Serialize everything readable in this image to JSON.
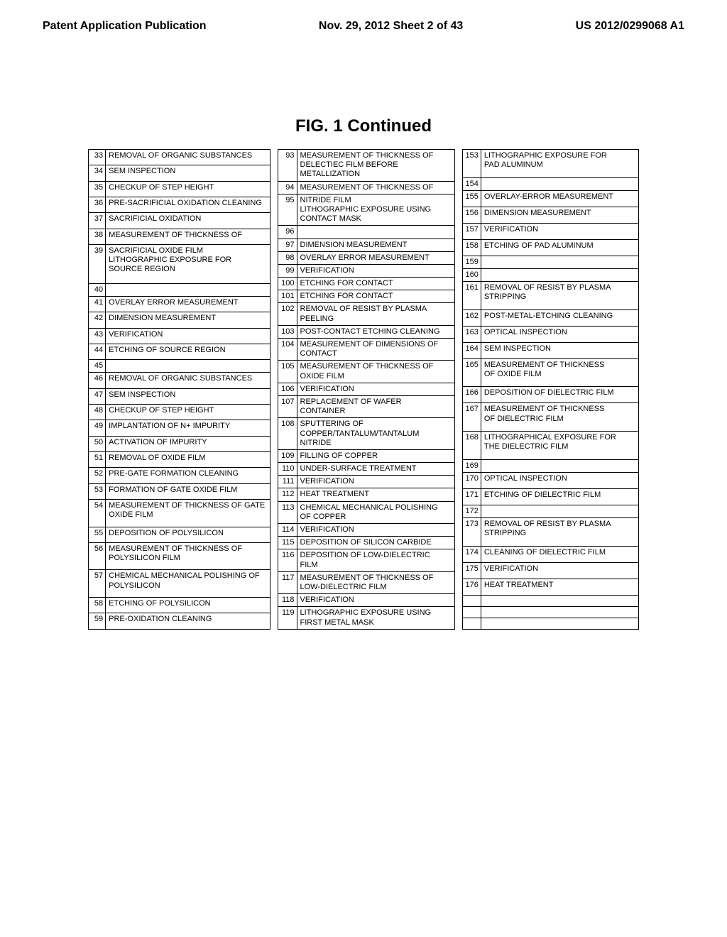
{
  "header": {
    "left": "Patent Application Publication",
    "center": "Nov. 29, 2012  Sheet 2 of 43",
    "right": "US 2012/0299068 A1"
  },
  "figure_title": "FIG. 1 Continued",
  "col1": [
    {
      "n": 33,
      "t": "REMOVAL OF ORGANIC SUBSTANCES"
    },
    {
      "n": 34,
      "t": "SEM INSPECTION"
    },
    {
      "n": 35,
      "t": "CHECKUP OF STEP HEIGHT"
    },
    {
      "n": 36,
      "t": "PRE-SACRIFICIAL OXIDATION CLEANING"
    },
    {
      "n": 37,
      "t": "SACRIFICIAL OXIDATION"
    },
    {
      "n": 38,
      "t": "MEASUREMENT OF THICKNESS OF"
    },
    {
      "n": 39,
      "t": "SACRIFICIAL OXIDE FILM\nLITHOGRAPHIC EXPOSURE FOR\nSOURCE REGION"
    },
    {
      "n": 40,
      "t": ""
    },
    {
      "n": 41,
      "t": "OVERLAY ERROR MEASUREMENT"
    },
    {
      "n": 42,
      "t": "DIMENSION MEASUREMENT"
    },
    {
      "n": 43,
      "t": "VERIFICATION"
    },
    {
      "n": 44,
      "t": "ETCHING OF SOURCE REGION"
    },
    {
      "n": 45,
      "t": ""
    },
    {
      "n": 46,
      "t": "REMOVAL OF ORGANIC SUBSTANCES"
    },
    {
      "n": 47,
      "t": "SEM INSPECTION"
    },
    {
      "n": 48,
      "t": "CHECKUP OF STEP HEIGHT"
    },
    {
      "n": 49,
      "t": "IMPLANTATION OF N+ IMPURITY"
    },
    {
      "n": 50,
      "t": "ACTIVATION OF IMPURITY"
    },
    {
      "n": 51,
      "t": "REMOVAL OF OXIDE FILM"
    },
    {
      "n": 52,
      "t": "PRE-GATE FORMATION CLEANING"
    },
    {
      "n": 53,
      "t": "FORMATION OF GATE OXIDE FILM"
    },
    {
      "n": 54,
      "t": "MEASUREMENT OF THICKNESS OF GATE\nOXIDE FILM"
    },
    {
      "n": 55,
      "t": "DEPOSITION OF POLYSILICON"
    },
    {
      "n": 56,
      "t": "MEASUREMENT OF THICKNESS OF\nPOLYSILICON FILM"
    },
    {
      "n": 57,
      "t": "CHEMICAL MECHANICAL POLISHING OF\nPOLYSILICON"
    },
    {
      "n": 58,
      "t": "ETCHING OF POLYSILICON"
    },
    {
      "n": 59,
      "t": "PRE-OXIDATION CLEANING"
    }
  ],
  "col2": [
    {
      "n": 93,
      "t": "MEASUREMENT OF THICKNESS OF\nDELECTIEC FILM BEFORE\nMETALLIZATION"
    },
    {
      "n": 94,
      "t": "MEASUREMENT OF THICKNESS OF"
    },
    {
      "n": 95,
      "t": "NITRIDE FILM\nLITHOGRAPHIC EXPOSURE USING\nCONTACT MASK"
    },
    {
      "n": 96,
      "t": ""
    },
    {
      "n": 97,
      "t": "DIMENSION MEASUREMENT"
    },
    {
      "n": 98,
      "t": "OVERLAY ERROR MEASUREMENT"
    },
    {
      "n": 99,
      "t": "VERIFICATION"
    },
    {
      "n": 100,
      "t": "ETCHING FOR CONTACT"
    },
    {
      "n": 101,
      "t": "ETCHING FOR CONTACT"
    },
    {
      "n": 102,
      "t": "REMOVAL OF RESIST BY PLASMA\nPEELING"
    },
    {
      "n": 103,
      "t": "POST-CONTACT ETCHING CLEANING"
    },
    {
      "n": 104,
      "t": "MEASUREMENT OF DIMENSIONS OF\nCONTACT"
    },
    {
      "n": 105,
      "t": "MEASUREMENT OF THICKNESS OF\nOXIDE FILM"
    },
    {
      "n": 106,
      "t": "VERIFICATION"
    },
    {
      "n": 107,
      "t": "REPLACEMENT OF WAFER\nCONTAINER"
    },
    {
      "n": 108,
      "t": "SPUTTERING OF\nCOPPER/TANTALUM/TANTALUM\nNITRIDE"
    },
    {
      "n": 109,
      "t": "FILLING OF COPPER"
    },
    {
      "n": 110,
      "t": "UNDER-SURFACE TREATMENT"
    },
    {
      "n": 111,
      "t": "VERIFICATION"
    },
    {
      "n": 112,
      "t": "HEAT TREATMENT"
    },
    {
      "n": 113,
      "t": "CHEMICAL MECHANICAL POLISHING\nOF COPPER"
    },
    {
      "n": 114,
      "t": "VERIFICATION"
    },
    {
      "n": 115,
      "t": "DEPOSITION OF SILICON CARBIDE"
    },
    {
      "n": 116,
      "t": "DEPOSITION OF LOW-DIELECTRIC\nFILM"
    },
    {
      "n": 117,
      "t": "MEASUREMENT OF THICKNESS OF\nLOW-DIELECTRIC FILM"
    },
    {
      "n": 118,
      "t": "VERIFICATION"
    },
    {
      "n": 119,
      "t": "LITHOGRAPHIC EXPOSURE USING\nFIRST METAL MASK"
    }
  ],
  "col3": [
    {
      "n": 153,
      "t": "LITHOGRAPHIC EXPOSURE FOR\nPAD ALUMINUM"
    },
    {
      "n": 154,
      "t": ""
    },
    {
      "n": 155,
      "t": "OVERLAY-ERROR MEASUREMENT"
    },
    {
      "n": 156,
      "t": "DIMENSION MEASUREMENT"
    },
    {
      "n": 157,
      "t": "VERIFICATION"
    },
    {
      "n": 158,
      "t": "ETCHING OF PAD ALUMINUM"
    },
    {
      "n": 159,
      "t": ""
    },
    {
      "n": 160,
      "t": ""
    },
    {
      "n": 161,
      "t": "REMOVAL OF RESIST BY PLASMA\nSTRIPPING"
    },
    {
      "n": 162,
      "t": "POST-METAL-ETCHING CLEANING"
    },
    {
      "n": 163,
      "t": "OPTICAL INSPECTION"
    },
    {
      "n": 164,
      "t": "SEM INSPECTION"
    },
    {
      "n": 165,
      "t": "MEASUREMENT OF THICKNESS\nOF OXIDE FILM"
    },
    {
      "n": 166,
      "t": "DEPOSITION OF DIELECTRIC FILM"
    },
    {
      "n": 167,
      "t": "MEASUREMENT OF THICKNESS\nOF DIELECTRIC FILM"
    },
    {
      "n": 168,
      "t": "LITHOGRAPHICAL EXPOSURE FOR\nTHE DIELECTRIC FILM"
    },
    {
      "n": 169,
      "t": ""
    },
    {
      "n": 170,
      "t": "OPTICAL INSPECTION"
    },
    {
      "n": 171,
      "t": "ETCHING OF DIELECTRIC FILM"
    },
    {
      "n": 172,
      "t": ""
    },
    {
      "n": 173,
      "t": "REMOVAL OF RESIST BY PLASMA\nSTRIPPING"
    },
    {
      "n": 174,
      "t": "CLEANING OF DIELECTRIC FILM"
    },
    {
      "n": 175,
      "t": "VERIFICATION"
    },
    {
      "n": 176,
      "t": "HEAT TREATMENT"
    },
    {
      "n": "",
      "t": ""
    },
    {
      "n": "",
      "t": ""
    },
    {
      "n": "",
      "t": ""
    }
  ]
}
